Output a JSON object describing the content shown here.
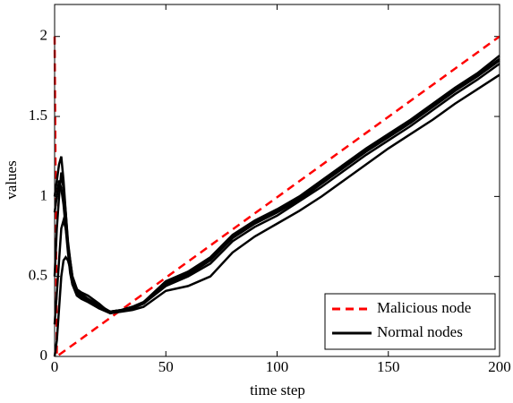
{
  "chart_data": {
    "type": "line",
    "xlabel": "time step",
    "ylabel": "values",
    "xlim": [
      0,
      200
    ],
    "ylim": [
      0,
      2.2
    ],
    "xticks": [
      0,
      50,
      100,
      150,
      200
    ],
    "yticks": [
      0,
      0.5,
      1,
      1.5,
      2
    ],
    "legend": "lower right",
    "series": [
      {
        "name": "Malicious node",
        "color": "#ff0000",
        "style": "dashed",
        "x": [
          0,
          1,
          200
        ],
        "values": [
          2,
          0,
          2
        ]
      },
      {
        "name": "Normal nodes",
        "color": "#000000",
        "style": "solid",
        "x": [
          0,
          1,
          2,
          3,
          4,
          5,
          6,
          7,
          8,
          10,
          12,
          15,
          20,
          25,
          30,
          35,
          40,
          50,
          60,
          70,
          80,
          90,
          100,
          110,
          120,
          130,
          140,
          150,
          160,
          170,
          180,
          190,
          200
        ],
        "values": [
          [
            1.0,
            1.1,
            1.2,
            1.25,
            1.1,
            0.9,
            0.7,
            0.55,
            0.45,
            0.38,
            0.36,
            0.34,
            0.3,
            0.27,
            0.29,
            0.31,
            0.34,
            0.47,
            0.53,
            0.62,
            0.76,
            0.85,
            0.92,
            1.0,
            1.1,
            1.2,
            1.3,
            1.39,
            1.48,
            1.58,
            1.68,
            1.77,
            1.88
          ],
          [
            0.5,
            0.8,
            1.0,
            1.15,
            1.05,
            0.9,
            0.72,
            0.6,
            0.5,
            0.42,
            0.38,
            0.35,
            0.31,
            0.28,
            0.29,
            0.31,
            0.33,
            0.45,
            0.51,
            0.6,
            0.74,
            0.83,
            0.9,
            0.98,
            1.08,
            1.18,
            1.28,
            1.37,
            1.46,
            1.56,
            1.66,
            1.75,
            1.85
          ],
          [
            0.2,
            0.4,
            0.6,
            0.8,
            0.85,
            0.8,
            0.7,
            0.6,
            0.5,
            0.42,
            0.39,
            0.36,
            0.32,
            0.28,
            0.29,
            0.3,
            0.33,
            0.44,
            0.5,
            0.58,
            0.72,
            0.81,
            0.88,
            0.97,
            1.06,
            1.16,
            1.26,
            1.35,
            1.44,
            1.54,
            1.64,
            1.73,
            1.83
          ],
          [
            0,
            0.1,
            0.3,
            0.5,
            0.6,
            0.62,
            0.6,
            0.55,
            0.48,
            0.42,
            0.4,
            0.38,
            0.33,
            0.27,
            0.28,
            0.29,
            0.31,
            0.41,
            0.44,
            0.5,
            0.65,
            0.75,
            0.83,
            0.91,
            1.0,
            1.1,
            1.2,
            1.3,
            1.39,
            1.48,
            1.58,
            1.67,
            1.76
          ],
          [
            0.9,
            1.0,
            1.1,
            1.05,
            0.95,
            0.8,
            0.65,
            0.52,
            0.45,
            0.4,
            0.37,
            0.35,
            0.3,
            0.28,
            0.29,
            0.31,
            0.34,
            0.46,
            0.52,
            0.61,
            0.75,
            0.84,
            0.91,
            0.99,
            1.09,
            1.19,
            1.29,
            1.38,
            1.47,
            1.57,
            1.67,
            1.76,
            1.86
          ]
        ]
      }
    ]
  }
}
